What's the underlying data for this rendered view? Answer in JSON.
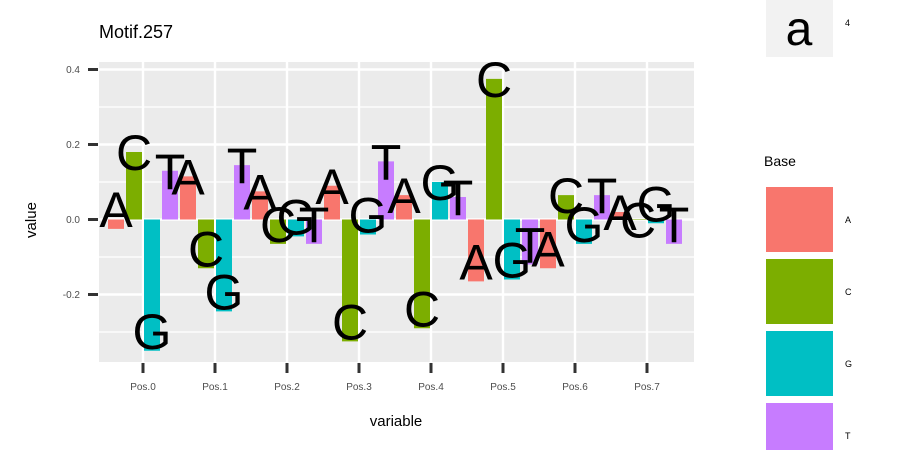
{
  "chart_data": {
    "type": "bar",
    "title": "Motif.257",
    "xlabel": "variable",
    "ylabel": "value",
    "categories": [
      "Pos.0",
      "Pos.1",
      "Pos.2",
      "Pos.3",
      "Pos.4",
      "Pos.5",
      "Pos.6",
      "Pos.7"
    ],
    "ylim": [
      -0.38,
      0.42
    ],
    "yticks": [
      -0.2,
      0.0,
      0.2,
      0.4
    ],
    "ytick_labels": [
      "-0.2",
      "0.0",
      "0.2",
      "0.4"
    ],
    "grid": true,
    "legend_position": "right",
    "legend_title": "Base",
    "series": [
      {
        "name": "A",
        "color": "#F8766D",
        "values": [
          -0.025,
          0.115,
          0.075,
          0.09,
          0.065,
          -0.165,
          -0.13,
          0.02
        ]
      },
      {
        "name": "C",
        "color": "#7CAE00",
        "values": [
          0.18,
          -0.13,
          -0.065,
          -0.325,
          -0.29,
          0.375,
          0.065,
          0.0
        ]
      },
      {
        "name": "G",
        "color": "#00BFC4",
        "values": [
          -0.35,
          -0.245,
          -0.045,
          -0.04,
          0.1,
          -0.16,
          -0.065,
          -0.01
        ]
      },
      {
        "name": "T",
        "color": "#C77CFF",
        "values": [
          0.13,
          0.145,
          -0.065,
          0.155,
          0.06,
          -0.12,
          0.065,
          -0.065
        ]
      }
    ]
  },
  "size_legend": {
    "key": "a",
    "value": "4"
  }
}
